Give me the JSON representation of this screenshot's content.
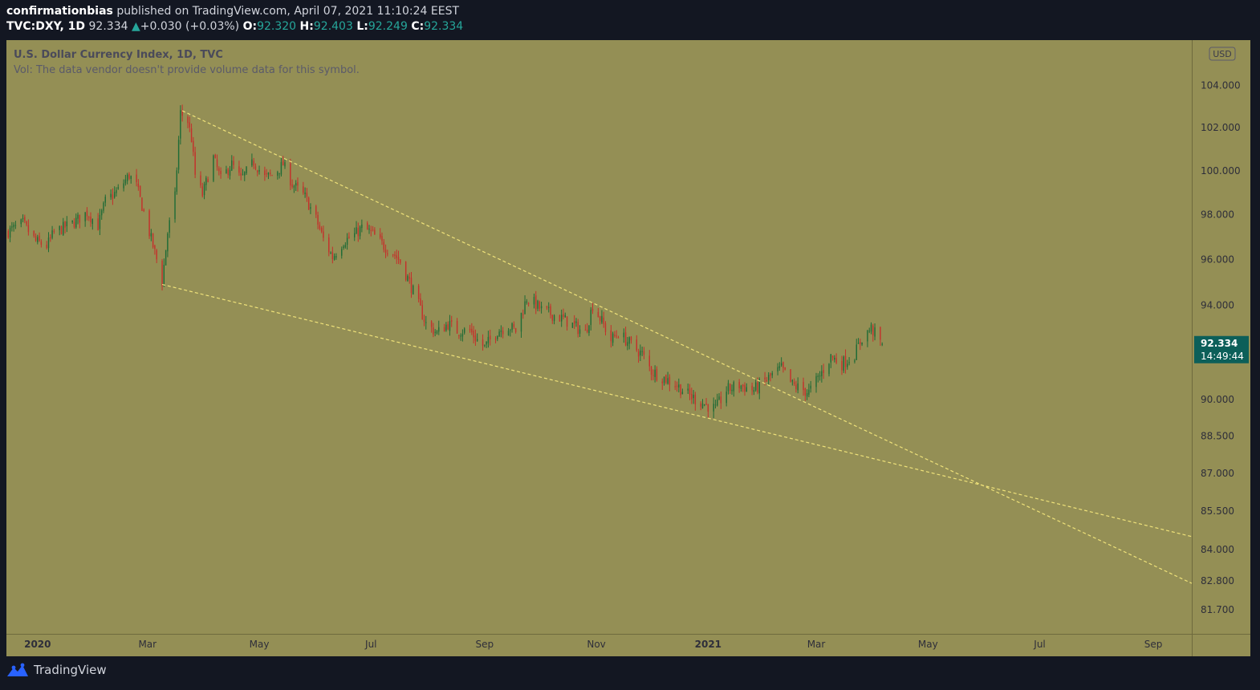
{
  "header": {
    "author": "confirmationbias",
    "published": " published on TradingView.com, April 07, 2021 11:10:24 EEST",
    "symbol": "TVC:DXY, 1D",
    "last": "92.334",
    "change": "+0.030 (+0.03%)",
    "o_label": "O:",
    "o_value": "92.320",
    "h_label": "H:",
    "h_value": "92.403",
    "l_label": "L:",
    "l_value": "92.249",
    "c_label": "C:",
    "c_value": "92.334"
  },
  "legend": {
    "title": "U.S. Dollar Currency Index, 1D, TVC",
    "volume_note": "Vol: The data vendor doesn't provide volume data for this symbol."
  },
  "price_tag": {
    "price": "92.334",
    "countdown": "14:49:44"
  },
  "currency_badge": "USD",
  "footer": {
    "brand": "TradingView"
  },
  "colors": {
    "plot_bg": "#948f55",
    "up": "#1e6b36",
    "down": "#c4302b",
    "trendline": "#efe27a",
    "tag": "#0c5f59"
  },
  "chart_data": {
    "type": "candlestick",
    "title": "U.S. Dollar Currency Index, 1D, TVC",
    "x_ticks": [
      "2020",
      "Mar",
      "May",
      "Jul",
      "Sep",
      "Nov",
      "2021",
      "Mar",
      "May",
      "Jul",
      "Sep"
    ],
    "y_ticks": [
      "104.000",
      "102.000",
      "100.000",
      "98.000",
      "96.000",
      "94.000",
      "90.000",
      "88.500",
      "87.000",
      "85.500",
      "84.000",
      "82.800",
      "81.700"
    ],
    "y_scale": "log",
    "y_range": [
      80.8,
      106.2
    ],
    "x_range": [
      "2019-12-15",
      "2021-09-22"
    ],
    "last_price": 92.334,
    "price_path": [
      [
        "2019-12-15",
        97.2
      ],
      [
        "2019-12-24",
        97.6
      ],
      [
        "2019-12-31",
        96.8
      ],
      [
        "2020-01-06",
        96.6
      ],
      [
        "2020-01-10",
        97.2
      ],
      [
        "2020-01-20",
        97.6
      ],
      [
        "2020-01-28",
        98.1
      ],
      [
        "2020-02-03",
        97.5
      ],
      [
        "2020-02-07",
        98.6
      ],
      [
        "2020-02-14",
        99.1
      ],
      [
        "2020-02-20",
        99.8
      ],
      [
        "2020-02-24",
        99.3
      ],
      [
        "2020-02-27",
        98.4
      ],
      [
        "2020-03-02",
        97.2
      ],
      [
        "2020-03-06",
        96.0
      ],
      [
        "2020-03-09",
        95.0
      ],
      [
        "2020-03-12",
        97.2
      ],
      [
        "2020-03-16",
        98.8
      ],
      [
        "2020-03-19",
        102.7
      ],
      [
        "2020-03-23",
        102.3
      ],
      [
        "2020-03-25",
        101.5
      ],
      [
        "2020-03-27",
        99.8
      ],
      [
        "2020-03-31",
        98.9
      ],
      [
        "2020-04-06",
        100.6
      ],
      [
        "2020-04-10",
        99.6
      ],
      [
        "2020-04-16",
        100.3
      ],
      [
        "2020-04-21",
        99.6
      ],
      [
        "2020-04-28",
        100.4
      ],
      [
        "2020-05-04",
        99.7
      ],
      [
        "2020-05-08",
        99.8
      ],
      [
        "2020-05-12",
        100.1
      ],
      [
        "2020-05-14",
        100.3
      ],
      [
        "2020-05-19",
        99.4
      ],
      [
        "2020-05-26",
        98.8
      ],
      [
        "2020-06-01",
        97.8
      ],
      [
        "2020-06-05",
        96.9
      ],
      [
        "2020-06-10",
        96.1
      ],
      [
        "2020-06-16",
        96.8
      ],
      [
        "2020-06-22",
        97.1
      ],
      [
        "2020-06-26",
        97.4
      ],
      [
        "2020-07-01",
        97.2
      ],
      [
        "2020-07-08",
        96.6
      ],
      [
        "2020-07-13",
        96.3
      ],
      [
        "2020-07-17",
        95.9
      ],
      [
        "2020-07-22",
        95.0
      ],
      [
        "2020-07-27",
        94.0
      ],
      [
        "2020-07-31",
        93.2
      ],
      [
        "2020-08-06",
        92.8
      ],
      [
        "2020-08-12",
        93.2
      ],
      [
        "2020-08-17",
        92.9
      ],
      [
        "2020-08-24",
        92.9
      ],
      [
        "2020-08-28",
        92.5
      ],
      [
        "2020-09-01",
        92.2
      ],
      [
        "2020-09-08",
        92.9
      ],
      [
        "2020-09-14",
        93.1
      ],
      [
        "2020-09-18",
        92.9
      ],
      [
        "2020-09-24",
        94.3
      ],
      [
        "2020-09-28",
        94.1
      ],
      [
        "2020-10-02",
        93.8
      ],
      [
        "2020-10-08",
        93.6
      ],
      [
        "2020-10-14",
        93.4
      ],
      [
        "2020-10-20",
        93.1
      ],
      [
        "2020-10-26",
        92.8
      ],
      [
        "2020-10-30",
        94.0
      ],
      [
        "2020-11-04",
        93.3
      ],
      [
        "2020-11-09",
        92.5
      ],
      [
        "2020-11-13",
        92.8
      ],
      [
        "2020-11-20",
        92.3
      ],
      [
        "2020-11-26",
        91.9
      ],
      [
        "2020-12-01",
        91.2
      ],
      [
        "2020-12-08",
        90.9
      ],
      [
        "2020-12-15",
        90.6
      ],
      [
        "2020-12-21",
        90.2
      ],
      [
        "2020-12-28",
        89.9
      ],
      [
        "2021-01-05",
        89.6
      ],
      [
        "2021-01-11",
        90.4
      ],
      [
        "2021-01-18",
        90.6
      ],
      [
        "2021-01-26",
        90.4
      ],
      [
        "2021-02-03",
        90.9
      ],
      [
        "2021-02-10",
        91.3
      ],
      [
        "2021-02-16",
        90.6
      ],
      [
        "2021-02-25",
        90.3
      ],
      [
        "2021-03-03",
        91.0
      ],
      [
        "2021-03-09",
        91.8
      ],
      [
        "2021-03-15",
        91.5
      ],
      [
        "2021-03-22",
        91.9
      ],
      [
        "2021-03-26",
        92.6
      ],
      [
        "2021-03-31",
        93.0
      ],
      [
        "2021-04-06",
        92.334
      ]
    ],
    "trendlines": [
      {
        "from": [
          "2020-03-20",
          102.8
        ],
        "to": [
          "2021-09-22",
          82.7
        ]
      },
      {
        "from": [
          "2020-03-09",
          94.9
        ],
        "to": [
          "2021-09-22",
          84.5
        ]
      }
    ]
  }
}
